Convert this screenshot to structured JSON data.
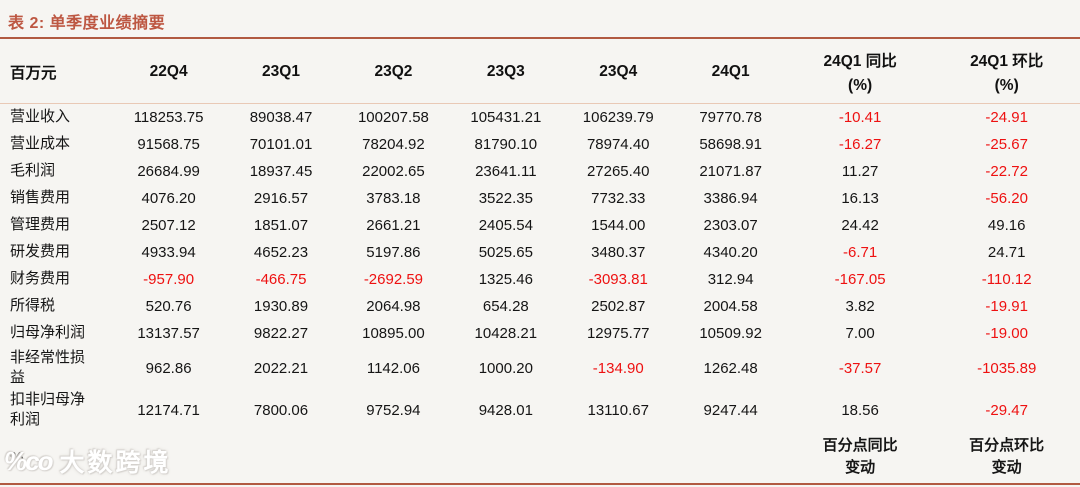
{
  "title": "表 2:  单季度业绩摘要",
  "colors": {
    "accent": "#b15a41",
    "header_rule_light": "#e9c9b6",
    "negative_red": "#ee1111",
    "background": "#f6f5f2"
  },
  "table": {
    "unit_label": "百万元",
    "quarter_columns": [
      "22Q4",
      "23Q1",
      "23Q2",
      "23Q3",
      "23Q4",
      "24Q1"
    ],
    "pct_columns": [
      {
        "title": "24Q1 同比",
        "sub": "(%)"
      },
      {
        "title": "24Q1 环比",
        "sub": "(%)"
      }
    ],
    "rows": [
      {
        "label": "营业收入",
        "values": [
          "118253.75",
          "89038.47",
          "100207.58",
          "105431.21",
          "106239.79",
          "79770.78",
          "-10.41",
          "-24.91"
        ]
      },
      {
        "label": "营业成本",
        "values": [
          "91568.75",
          "70101.01",
          "78204.92",
          "81790.10",
          "78974.40",
          "58698.91",
          "-16.27",
          "-25.67"
        ]
      },
      {
        "label": "毛利润",
        "values": [
          "26684.99",
          "18937.45",
          "22002.65",
          "23641.11",
          "27265.40",
          "21071.87",
          "11.27",
          "-22.72"
        ]
      },
      {
        "label": "销售费用",
        "values": [
          "4076.20",
          "2916.57",
          "3783.18",
          "3522.35",
          "7732.33",
          "3386.94",
          "16.13",
          "-56.20"
        ]
      },
      {
        "label": "管理费用",
        "values": [
          "2507.12",
          "1851.07",
          "2661.21",
          "2405.54",
          "1544.00",
          "2303.07",
          "24.42",
          "49.16"
        ]
      },
      {
        "label": "研发费用",
        "values": [
          "4933.94",
          "4652.23",
          "5197.86",
          "5025.65",
          "3480.37",
          "4340.20",
          "-6.71",
          "24.71"
        ]
      },
      {
        "label": "财务费用",
        "values": [
          "-957.90",
          "-466.75",
          "-2692.59",
          "1325.46",
          "-3093.81",
          "312.94",
          "-167.05",
          "-110.12"
        ]
      },
      {
        "label": "所得税",
        "values": [
          "520.76",
          "1930.89",
          "2064.98",
          "654.28",
          "2502.87",
          "2004.58",
          "3.82",
          "-19.91"
        ]
      },
      {
        "label": "归母净利润",
        "values": [
          "13137.57",
          "9822.27",
          "10895.00",
          "10428.21",
          "12975.77",
          "10509.92",
          "7.00",
          "-19.00"
        ]
      },
      {
        "label": "非经常性损益",
        "values": [
          "962.86",
          "2022.21",
          "1142.06",
          "1000.20",
          "-134.90",
          "1262.48",
          "-37.57",
          "-1035.89"
        ]
      },
      {
        "label": "扣非归母净利润",
        "values": [
          "12174.71",
          "7800.06",
          "9752.94",
          "9428.01",
          "13110.67",
          "9247.44",
          "18.56",
          "-29.47"
        ]
      }
    ],
    "footer_row": {
      "label": "%",
      "yoy_label": "百分点同比变动",
      "qoq_label": "百分点环比变动"
    }
  },
  "watermark": {
    "logo": "%co",
    "text": "大数跨境"
  }
}
